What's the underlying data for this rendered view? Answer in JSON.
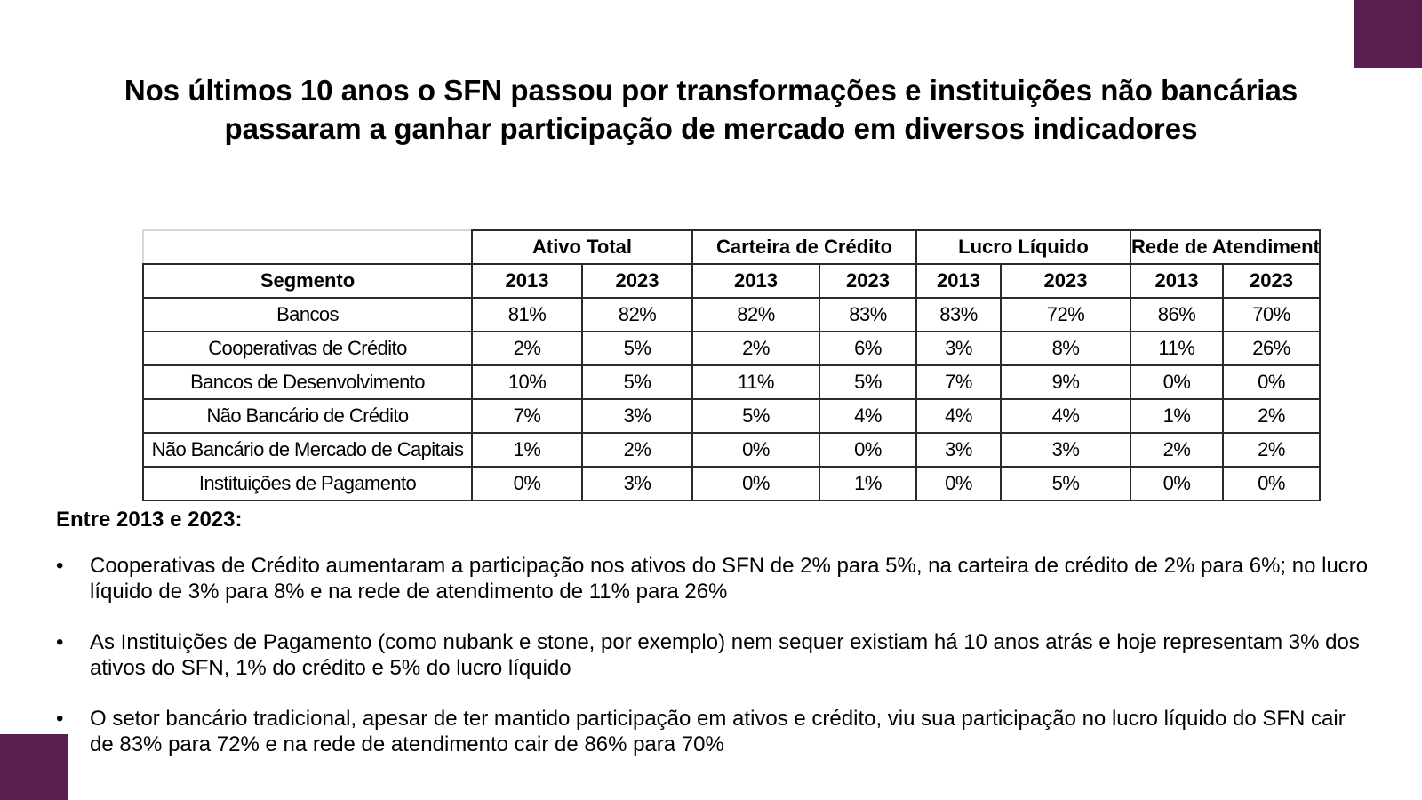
{
  "theme": {
    "accent": "#5a1d4f"
  },
  "slide": {
    "title_line1": "Nos últimos 10 anos o SFN passou por transformações e instituições não bancárias",
    "title_line2": "passaram a ganhar participação de mercado em diversos indicadores"
  },
  "table": {
    "groups": [
      "Ativo Total",
      "Carteira de Crédito",
      "Lucro Líquido",
      "Rede de Atendimento"
    ],
    "segment_header": "Segmento",
    "years": [
      "2013",
      "2023",
      "2013",
      "2023",
      "2013",
      "2023",
      "2013",
      "2023"
    ],
    "rows": [
      {
        "segment": "Bancos",
        "values": [
          "81%",
          "82%",
          "82%",
          "83%",
          "83%",
          "72%",
          "86%",
          "70%"
        ]
      },
      {
        "segment": "Cooperativas de Crédito",
        "values": [
          "2%",
          "5%",
          "2%",
          "6%",
          "3%",
          "8%",
          "11%",
          "26%"
        ]
      },
      {
        "segment": "Bancos de Desenvolvimento",
        "values": [
          "10%",
          "5%",
          "11%",
          "5%",
          "7%",
          "9%",
          "0%",
          "0%"
        ]
      },
      {
        "segment": "Não Bancário de Crédito",
        "values": [
          "7%",
          "3%",
          "5%",
          "4%",
          "4%",
          "4%",
          "1%",
          "2%"
        ]
      },
      {
        "segment": "Não Bancário de Mercado de Capitais",
        "values": [
          "1%",
          "2%",
          "0%",
          "0%",
          "3%",
          "3%",
          "2%",
          "2%"
        ]
      },
      {
        "segment": "Instituições de Pagamento",
        "values": [
          "0%",
          "3%",
          "0%",
          "1%",
          "0%",
          "5%",
          "0%",
          "0%"
        ]
      }
    ]
  },
  "summary": {
    "lead": "Entre 2013 e 2023:",
    "bullet_glyph": "•",
    "bullets": [
      "Cooperativas de Crédito aumentaram a participação nos ativos do SFN de 2% para 5%, na carteira de crédito de 2% para 6%; no lucro líquido de 3% para 8% e na rede de atendimento de 11% para 26%",
      "As Instituições de Pagamento (como nubank e stone, por exemplo) nem sequer existiam há 10 anos atrás e hoje representam 3% dos ativos do SFN, 1% do crédito e 5% do lucro líquido",
      "O setor bancário tradicional, apesar de ter mantido participação em ativos e crédito, viu sua participação no lucro líquido do SFN cair de 83% para 72% e na rede de atendimento cair de 86% para 70%"
    ]
  }
}
